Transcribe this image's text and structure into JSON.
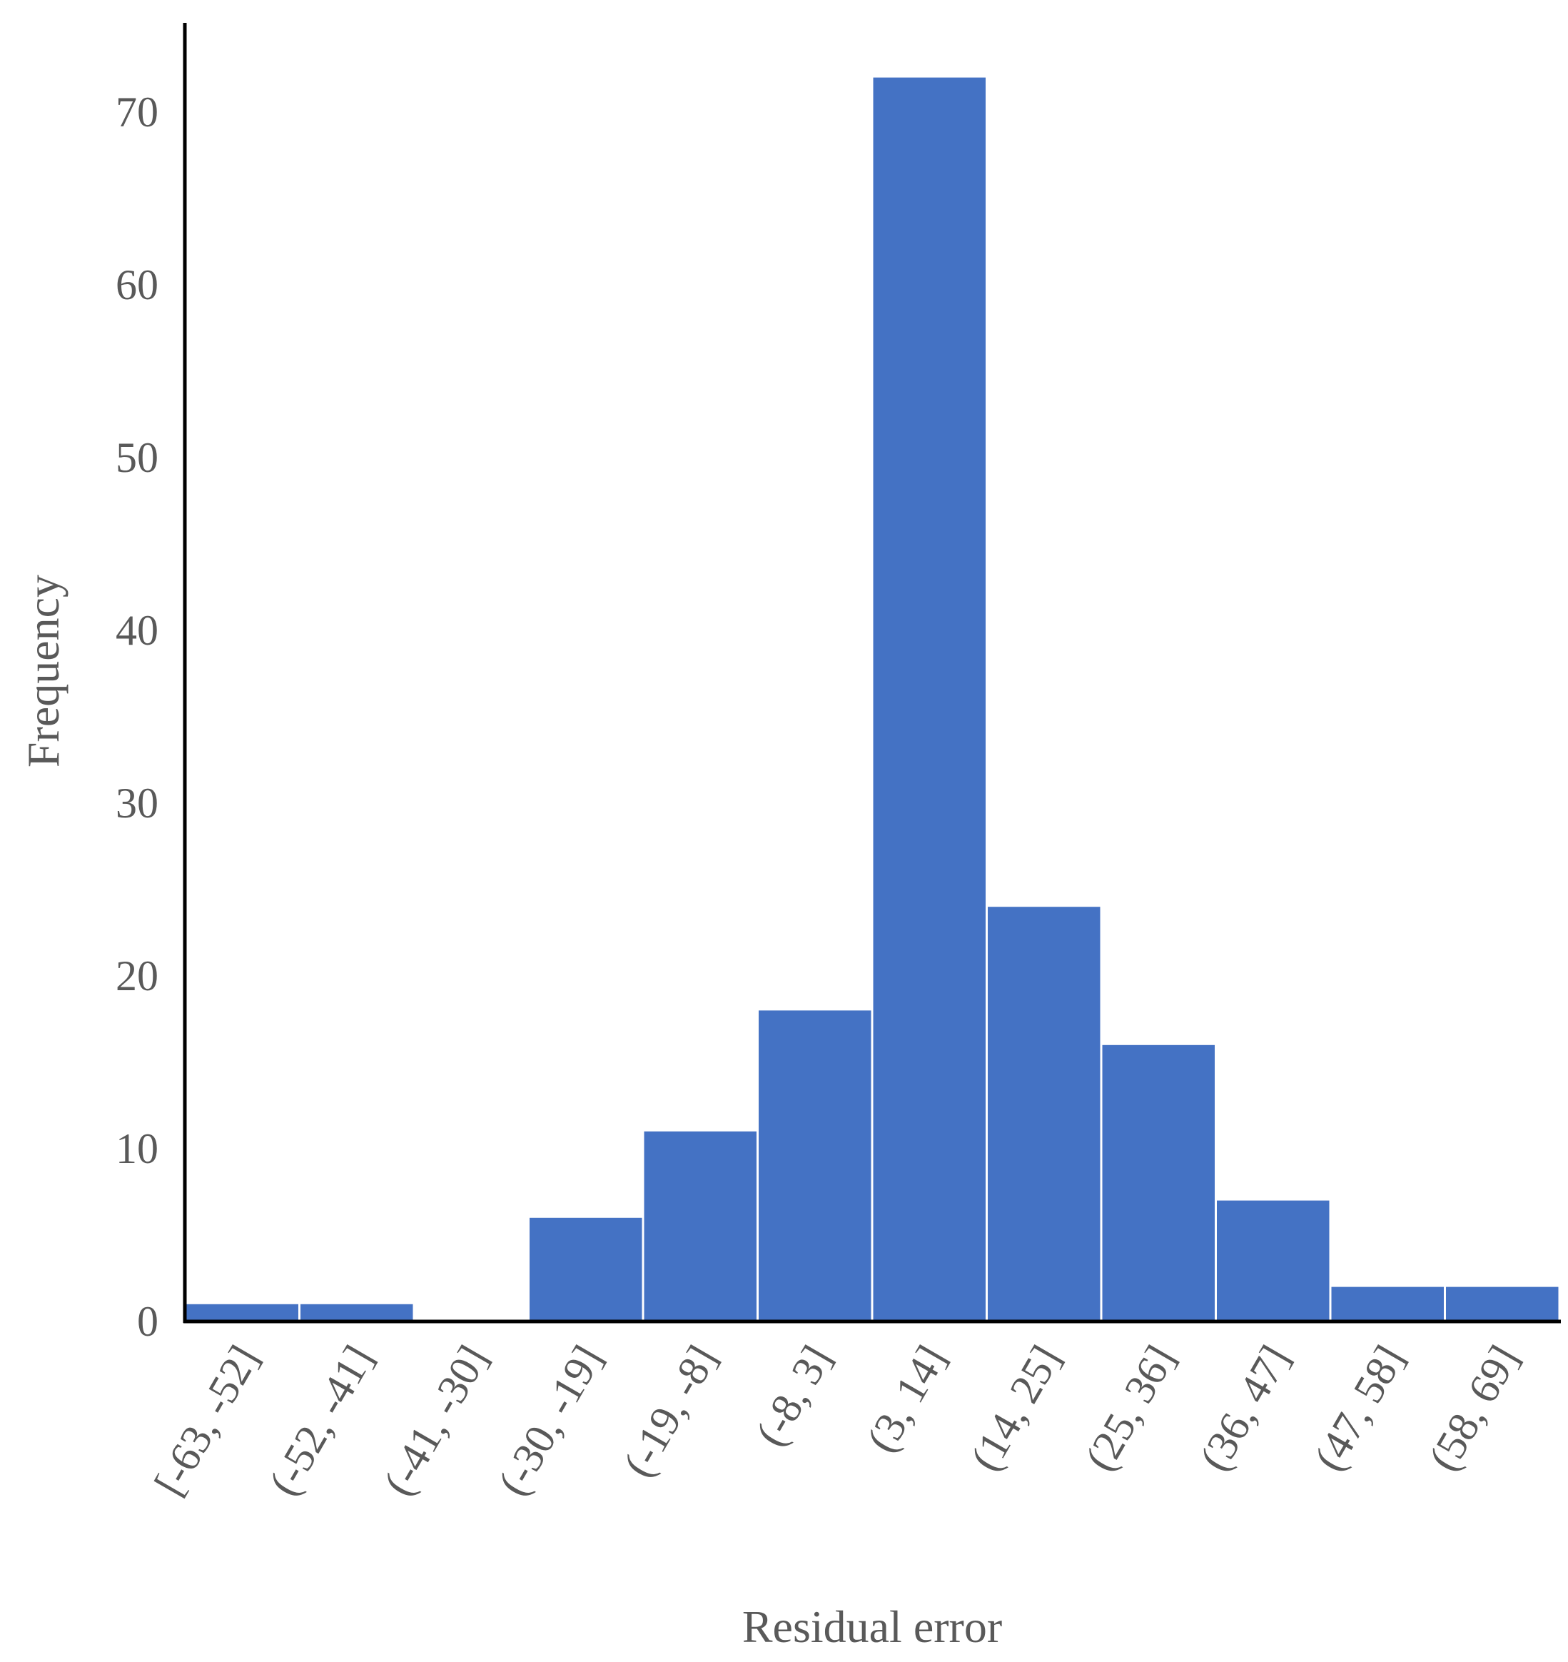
{
  "chart_data": {
    "type": "bar",
    "title": "",
    "xlabel": "Residual error",
    "ylabel": "Frequency",
    "ylim": [
      0,
      75
    ],
    "yticks": [
      "0",
      "10",
      "20",
      "30",
      "40",
      "50",
      "60",
      "70"
    ],
    "categories": [
      "[-63, -52]",
      "(-52, -41]",
      "(-41, -30]",
      "(-30, -19]",
      "(-19, -8]",
      "(-8, 3]",
      "(3, 14]",
      "(14, 25]",
      "(25, 36]",
      "(36, 47]",
      "(47, 58]",
      "(58, 69]"
    ],
    "values": [
      1,
      1,
      0,
      6,
      11,
      18,
      72,
      24,
      16,
      7,
      2,
      2
    ],
    "bar_color": "#4472C4",
    "grid": false,
    "legend": "none"
  }
}
